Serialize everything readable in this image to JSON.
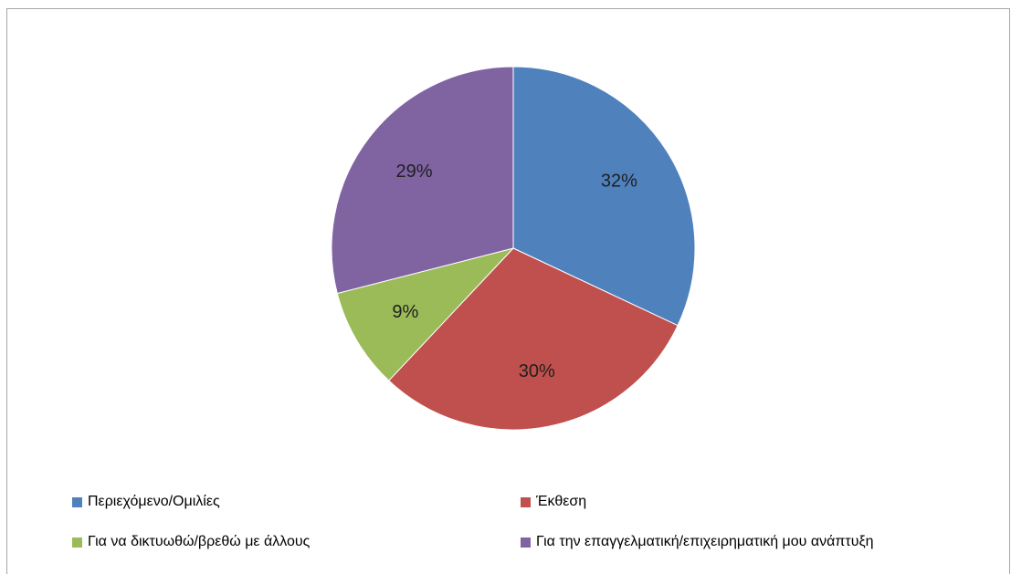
{
  "chart_data": {
    "type": "pie",
    "categories": [
      "Περιεχόμενο/Ομιλίες",
      "Έκθεση",
      "Για να δικτυωθώ/βρεθώ με άλλους",
      "Για την επαγγελματική/επιχειρηματική μου ανάπτυξη"
    ],
    "values": [
      32,
      30,
      9,
      29
    ],
    "data_labels": [
      "32%",
      "30%",
      "9%",
      "29%"
    ],
    "colors": [
      "#4f81bd",
      "#c0504d",
      "#9bbb59",
      "#8064a2"
    ],
    "legend_position": "bottom"
  }
}
